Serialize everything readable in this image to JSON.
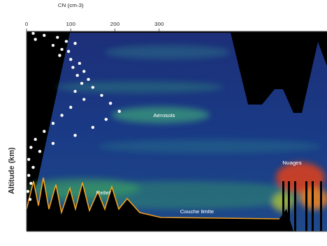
{
  "chart_data": {
    "type": "scatter",
    "x_label": "CN (cm-3)",
    "y_label": "Altitude (km)",
    "annotations": [
      "Aérosols",
      "Relief",
      "Couche limite",
      "Nuages"
    ],
    "x": [
      15,
      40,
      70,
      20,
      90,
      110,
      60,
      80,
      95,
      75,
      100,
      120,
      105,
      130,
      115,
      140,
      125,
      150,
      110,
      170,
      130,
      190,
      100,
      210,
      80,
      180,
      60,
      150,
      40,
      110,
      20,
      60,
      10,
      30,
      5,
      15,
      5,
      10,
      3,
      8
    ],
    "values": [
      9.9,
      9.8,
      9.7,
      9.6,
      9.5,
      9.4,
      9.3,
      9.1,
      9.0,
      8.8,
      8.6,
      8.4,
      8.2,
      8.0,
      7.8,
      7.6,
      7.4,
      7.2,
      7.0,
      6.8,
      6.6,
      6.4,
      6.2,
      6.0,
      5.8,
      5.6,
      5.4,
      5.2,
      5.0,
      4.8,
      4.6,
      4.4,
      4.2,
      4.0,
      3.6,
      3.2,
      2.8,
      2.4,
      2.0,
      1.6
    ],
    "color": "#ffffff",
    "marker": "circle",
    "xlim": [
      0,
      680
    ],
    "xticks": [
      0,
      100,
      200,
      300
    ],
    "ylim": [
      0,
      10
    ],
    "yticks": [],
    "tick_labels": "x"
  }
}
